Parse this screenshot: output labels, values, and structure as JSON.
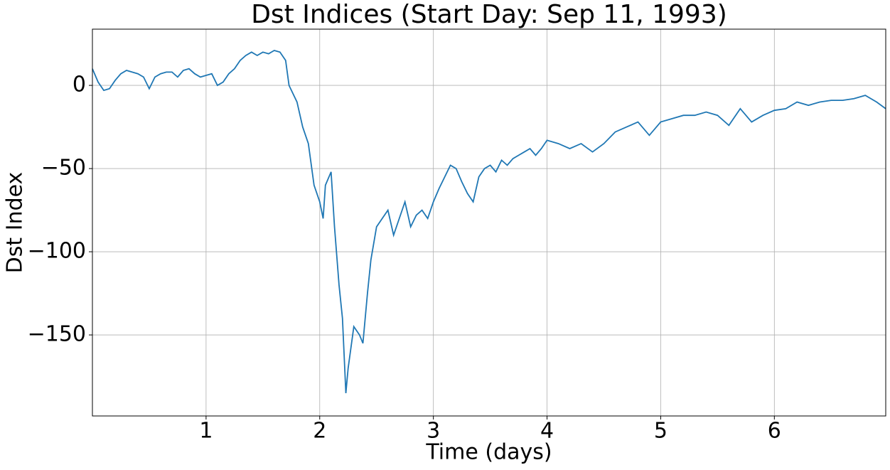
{
  "chart_data": {
    "type": "line",
    "title": "Dst Indices (Start Day: Sep 11, 1993)",
    "xlabel": "Time (days)",
    "ylabel": "Dst Index",
    "x": [
      0,
      0.05,
      0.1,
      0.15,
      0.2,
      0.25,
      0.3,
      0.35,
      0.4,
      0.45,
      0.5,
      0.55,
      0.6,
      0.65,
      0.7,
      0.75,
      0.8,
      0.85,
      0.9,
      0.95,
      1.0,
      1.05,
      1.1,
      1.15,
      1.2,
      1.25,
      1.3,
      1.35,
      1.4,
      1.45,
      1.5,
      1.55,
      1.6,
      1.65,
      1.7,
      1.73,
      1.8,
      1.85,
      1.9,
      1.95,
      2.0,
      2.03,
      2.05,
      2.1,
      2.13,
      2.17,
      2.2,
      2.23,
      2.25,
      2.3,
      2.35,
      2.38,
      2.42,
      2.45,
      2.5,
      2.55,
      2.6,
      2.65,
      2.7,
      2.75,
      2.8,
      2.85,
      2.9,
      2.95,
      3.0,
      3.05,
      3.1,
      3.15,
      3.2,
      3.25,
      3.3,
      3.35,
      3.4,
      3.45,
      3.5,
      3.55,
      3.6,
      3.65,
      3.7,
      3.75,
      3.8,
      3.85,
      3.9,
      3.95,
      4.0,
      4.1,
      4.2,
      4.3,
      4.4,
      4.5,
      4.6,
      4.7,
      4.8,
      4.9,
      5.0,
      5.1,
      5.2,
      5.3,
      5.4,
      5.5,
      5.6,
      5.7,
      5.8,
      5.9,
      6.0,
      6.1,
      6.2,
      6.3,
      6.4,
      6.5,
      6.6,
      6.7,
      6.8,
      6.9,
      6.98
    ],
    "series": [
      {
        "name": "Dst",
        "color": "#1f77b4",
        "values": [
          10,
          2,
          -3,
          -2,
          3,
          7,
          9,
          8,
          7,
          5,
          -2,
          5,
          7,
          8,
          8,
          5,
          9,
          10,
          7,
          5,
          6,
          7,
          0,
          2,
          7,
          10,
          15,
          18,
          20,
          18,
          20,
          19,
          21,
          20,
          15,
          0,
          -10,
          -25,
          -35,
          -60,
          -70,
          -80,
          -60,
          -52,
          -85,
          -120,
          -140,
          -185,
          -170,
          -145,
          -150,
          -155,
          -125,
          -105,
          -85,
          -80,
          -75,
          -90,
          -80,
          -70,
          -85,
          -78,
          -75,
          -80,
          -70,
          -62,
          -55,
          -48,
          -50,
          -58,
          -65,
          -70,
          -55,
          -50,
          -48,
          -52,
          -45,
          -48,
          -44,
          -42,
          -40,
          -38,
          -42,
          -38,
          -33,
          -35,
          -38,
          -35,
          -40,
          -35,
          -28,
          -25,
          -22,
          -30,
          -22,
          -20,
          -18,
          -18,
          -16,
          -18,
          -24,
          -14,
          -22,
          -18,
          -15,
          -14,
          -10,
          -12,
          -10,
          -9,
          -9,
          -8,
          -6,
          -10,
          -14
        ]
      }
    ],
    "xlim": [
      0,
      6.98
    ],
    "ylim": [
      -198.7,
      33.8
    ],
    "xticks": [
      1,
      2,
      3,
      4,
      5,
      6
    ],
    "yticks": [
      {
        "value": -150,
        "label": "−150"
      },
      {
        "value": -100,
        "label": "−100"
      },
      {
        "value": -50,
        "label": "−50"
      },
      0
    ],
    "grid": true
  }
}
